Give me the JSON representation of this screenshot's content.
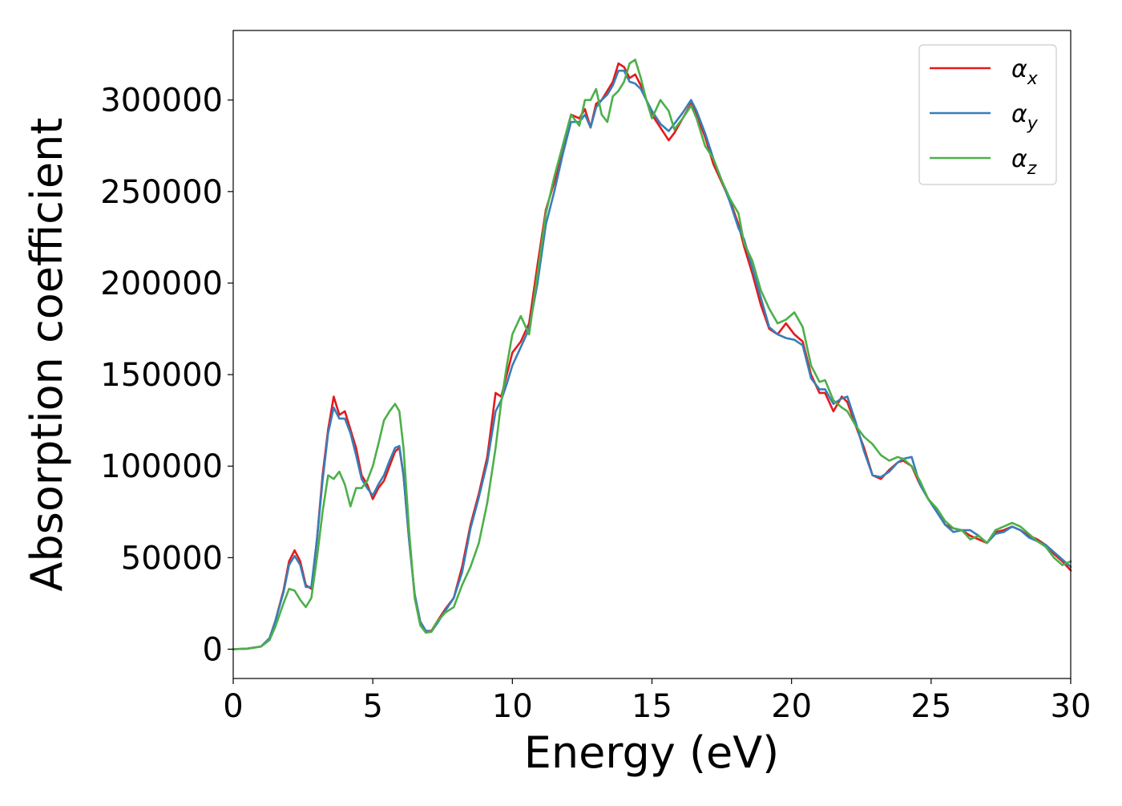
{
  "chart_data": {
    "type": "line",
    "title": "",
    "xlabel": "Energy (eV)",
    "ylabel": "Absorption coefficient",
    "xlim": [
      0,
      30
    ],
    "ylim": [
      -16000,
      338000
    ],
    "x_ticks": [
      0,
      5,
      10,
      15,
      20,
      25,
      30
    ],
    "x_tick_labels": [
      "0",
      "5",
      "10",
      "15",
      "20",
      "25",
      "30"
    ],
    "y_ticks": [
      0,
      50000,
      100000,
      150000,
      200000,
      250000,
      300000
    ],
    "y_tick_labels": [
      "0",
      "50000",
      "100000",
      "150000",
      "200000",
      "250000",
      "300000"
    ],
    "grid": false,
    "legend_position": "top-right",
    "series": [
      {
        "name": "αx",
        "name_base": "α",
        "name_sub": "x",
        "color": "#e41a1c",
        "x": [
          0,
          0.5,
          1.0,
          1.3,
          1.5,
          1.8,
          2.0,
          2.2,
          2.4,
          2.6,
          2.8,
          3.0,
          3.2,
          3.4,
          3.6,
          3.8,
          4.0,
          4.2,
          4.4,
          4.6,
          4.8,
          5.0,
          5.2,
          5.4,
          5.6,
          5.8,
          5.95,
          6.1,
          6.3,
          6.5,
          6.7,
          6.9,
          7.1,
          7.3,
          7.6,
          7.9,
          8.2,
          8.5,
          8.8,
          9.1,
          9.4,
          9.6,
          9.8,
          10.0,
          10.3,
          10.6,
          10.9,
          11.2,
          11.5,
          11.8,
          12.1,
          12.4,
          12.6,
          12.8,
          13.0,
          13.2,
          13.4,
          13.6,
          13.8,
          14.0,
          14.2,
          14.4,
          14.6,
          14.8,
          15.0,
          15.3,
          15.6,
          15.8,
          16.1,
          16.4,
          16.6,
          16.9,
          17.2,
          17.5,
          17.8,
          18.1,
          18.3,
          18.6,
          18.9,
          19.2,
          19.5,
          19.8,
          20.1,
          20.4,
          20.7,
          21.0,
          21.2,
          21.5,
          21.8,
          22.0,
          22.3,
          22.6,
          22.9,
          23.2,
          23.5,
          23.8,
          24.0,
          24.3,
          24.6,
          24.9,
          25.2,
          25.5,
          25.8,
          26.1,
          26.4,
          26.7,
          27.0,
          27.3,
          27.6,
          27.9,
          28.2,
          28.5,
          28.8,
          29.1,
          29.4,
          29.7,
          30.0
        ],
        "y": [
          0,
          300,
          1500,
          6000,
          15000,
          32000,
          48000,
          54000,
          48000,
          35000,
          33000,
          60000,
          95000,
          120000,
          138000,
          128000,
          130000,
          120000,
          110000,
          95000,
          90000,
          82000,
          88000,
          92000,
          100000,
          108000,
          110000,
          95000,
          60000,
          30000,
          15000,
          10000,
          10000,
          15000,
          22000,
          28000,
          45000,
          68000,
          85000,
          105000,
          140000,
          138000,
          150000,
          162000,
          168000,
          178000,
          210000,
          240000,
          255000,
          272000,
          292000,
          290000,
          295000,
          285000,
          298000,
          300000,
          305000,
          310000,
          320000,
          318000,
          312000,
          314000,
          308000,
          300000,
          292000,
          285000,
          278000,
          282000,
          290000,
          298000,
          292000,
          280000,
          265000,
          255000,
          245000,
          232000,
          220000,
          205000,
          188000,
          175000,
          172000,
          178000,
          172000,
          168000,
          150000,
          140000,
          140000,
          130000,
          138000,
          135000,
          122000,
          110000,
          95000,
          93000,
          98000,
          102000,
          103000,
          100000,
          90000,
          82000,
          76000,
          68000,
          66000,
          65000,
          62000,
          60000,
          58000,
          64000,
          65000,
          67000,
          65000,
          62000,
          60000,
          57000,
          52000,
          48000,
          43000
        ]
      },
      {
        "name": "αy",
        "name_base": "α",
        "name_sub": "y",
        "color": "#377eb8",
        "x": [
          0,
          0.5,
          1.0,
          1.3,
          1.5,
          1.8,
          2.0,
          2.2,
          2.4,
          2.6,
          2.8,
          3.0,
          3.2,
          3.4,
          3.6,
          3.8,
          4.0,
          4.2,
          4.4,
          4.6,
          4.8,
          5.0,
          5.2,
          5.4,
          5.6,
          5.8,
          5.95,
          6.1,
          6.3,
          6.5,
          6.7,
          6.9,
          7.1,
          7.3,
          7.6,
          7.9,
          8.2,
          8.5,
          8.8,
          9.1,
          9.4,
          9.6,
          9.8,
          10.0,
          10.3,
          10.6,
          10.9,
          11.2,
          11.5,
          11.8,
          12.1,
          12.4,
          12.6,
          12.8,
          13.0,
          13.2,
          13.4,
          13.6,
          13.8,
          14.0,
          14.2,
          14.4,
          14.6,
          14.8,
          15.0,
          15.3,
          15.6,
          15.8,
          16.1,
          16.4,
          16.6,
          16.9,
          17.2,
          17.5,
          17.8,
          18.1,
          18.3,
          18.6,
          18.9,
          19.2,
          19.5,
          19.8,
          20.1,
          20.4,
          20.7,
          21.0,
          21.2,
          21.5,
          21.8,
          22.0,
          22.3,
          22.6,
          22.9,
          23.2,
          23.5,
          23.8,
          24.0,
          24.3,
          24.6,
          24.9,
          25.2,
          25.5,
          25.8,
          26.1,
          26.4,
          26.7,
          27.0,
          27.3,
          27.6,
          27.9,
          28.2,
          28.5,
          28.8,
          29.1,
          29.4,
          29.7,
          30.0
        ],
        "y": [
          0,
          300,
          1500,
          6000,
          15000,
          31000,
          46000,
          51000,
          46000,
          34000,
          34000,
          60000,
          92000,
          118000,
          132000,
          126000,
          126000,
          118000,
          106000,
          93000,
          88000,
          84000,
          90000,
          95000,
          103000,
          110000,
          111000,
          95000,
          60000,
          30000,
          15000,
          10000,
          9500,
          14000,
          21000,
          28000,
          42000,
          66000,
          83000,
          102000,
          130000,
          136000,
          145000,
          155000,
          165000,
          175000,
          200000,
          232000,
          250000,
          270000,
          288000,
          288000,
          292000,
          285000,
          296000,
          300000,
          303000,
          308000,
          316000,
          316000,
          310000,
          309000,
          306000,
          300000,
          294000,
          287000,
          283000,
          287000,
          293000,
          300000,
          294000,
          282000,
          268000,
          256000,
          244000,
          230000,
          224000,
          208000,
          192000,
          176000,
          172000,
          170000,
          169000,
          166000,
          148000,
          142000,
          142000,
          134000,
          137000,
          138000,
          124000,
          108000,
          95000,
          94000,
          97000,
          102000,
          104000,
          105000,
          90000,
          82000,
          75000,
          68000,
          64000,
          65000,
          65000,
          62000,
          58000,
          63000,
          64000,
          67000,
          65000,
          61000,
          59000,
          57000,
          53000,
          49000,
          45000
        ]
      },
      {
        "name": "αz",
        "name_base": "α",
        "name_sub": "z",
        "color": "#4daf4a",
        "x": [
          0,
          0.5,
          1.0,
          1.3,
          1.5,
          1.8,
          2.0,
          2.2,
          2.4,
          2.6,
          2.8,
          3.0,
          3.2,
          3.4,
          3.6,
          3.8,
          4.0,
          4.2,
          4.4,
          4.6,
          4.8,
          5.0,
          5.2,
          5.4,
          5.6,
          5.8,
          5.95,
          6.1,
          6.3,
          6.5,
          6.7,
          6.9,
          7.1,
          7.3,
          7.6,
          7.9,
          8.2,
          8.5,
          8.8,
          9.1,
          9.4,
          9.6,
          9.8,
          10.0,
          10.3,
          10.6,
          10.9,
          11.2,
          11.5,
          11.8,
          12.1,
          12.4,
          12.6,
          12.8,
          13.0,
          13.2,
          13.4,
          13.6,
          13.8,
          14.0,
          14.2,
          14.4,
          14.6,
          14.8,
          15.0,
          15.3,
          15.6,
          15.8,
          16.1,
          16.4,
          16.6,
          16.9,
          17.2,
          17.5,
          17.8,
          18.1,
          18.3,
          18.6,
          18.9,
          19.2,
          19.5,
          19.8,
          20.1,
          20.4,
          20.7,
          21.0,
          21.2,
          21.5,
          21.8,
          22.0,
          22.3,
          22.6,
          22.9,
          23.2,
          23.5,
          23.8,
          24.0,
          24.3,
          24.6,
          24.9,
          25.2,
          25.5,
          25.8,
          26.1,
          26.4,
          26.7,
          27.0,
          27.3,
          27.6,
          27.9,
          28.2,
          28.5,
          28.8,
          29.1,
          29.4,
          29.7,
          30.0
        ],
        "y": [
          0,
          300,
          1500,
          5000,
          12000,
          25000,
          33000,
          32000,
          27000,
          23000,
          28000,
          50000,
          75000,
          95000,
          93000,
          97000,
          90000,
          78000,
          88000,
          88000,
          92000,
          100000,
          112000,
          125000,
          130000,
          134000,
          130000,
          110000,
          65000,
          28000,
          13000,
          9000,
          9500,
          15000,
          20000,
          23000,
          35000,
          45000,
          58000,
          80000,
          110000,
          135000,
          155000,
          172000,
          182000,
          172000,
          205000,
          238000,
          258000,
          275000,
          292000,
          286000,
          300000,
          300000,
          306000,
          292000,
          288000,
          302000,
          305000,
          310000,
          320000,
          322000,
          312000,
          300000,
          290000,
          300000,
          294000,
          284000,
          290000,
          297000,
          290000,
          275000,
          268000,
          256000,
          246000,
          238000,
          222000,
          212000,
          196000,
          186000,
          178000,
          180000,
          184000,
          176000,
          155000,
          146000,
          147000,
          136000,
          132000,
          130000,
          122000,
          116000,
          112000,
          106000,
          103000,
          105000,
          104000,
          100000,
          92000,
          82000,
          77000,
          70000,
          66000,
          65000,
          60000,
          62000,
          58000,
          65000,
          67000,
          69000,
          67000,
          63000,
          59000,
          56000,
          50000,
          46000,
          48000
        ]
      }
    ]
  }
}
